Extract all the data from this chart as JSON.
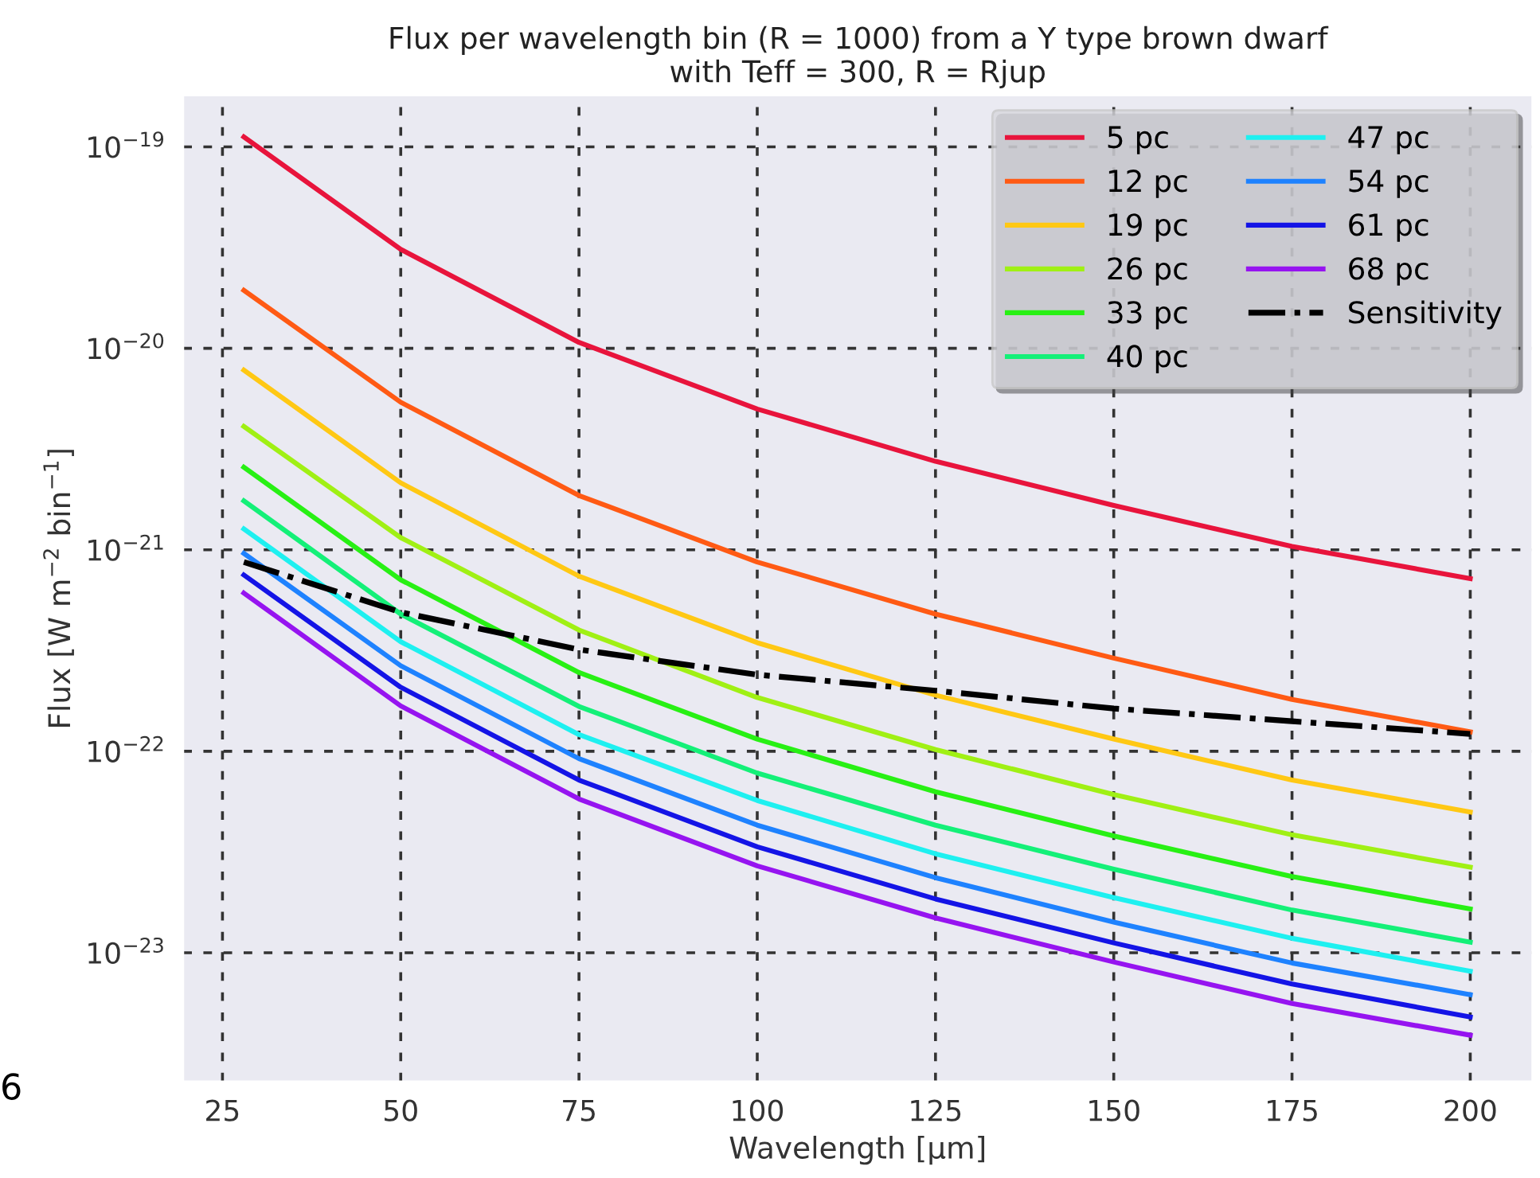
{
  "chart_data": {
    "type": "line",
    "title": "Flux per wavelength bin (R = 1000) from a Y type brown dwarf\nwith Teff = 300, R = Rjup",
    "xlabel": "Wavelength [μm]",
    "ylabel": "Flux [W m$^{−2}$ bin$^{−1}$]",
    "x": [
      28,
      50,
      75,
      100,
      125,
      150,
      175,
      200
    ],
    "series": [
      {
        "name": "5 pc",
        "color": "#e8143c",
        "values": [
          1.12e-19,
          3.1e-20,
          1.07e-20,
          5e-21,
          2.75e-21,
          1.66e-21,
          1.04e-21,
          7.2e-22
        ]
      },
      {
        "name": "12 pc",
        "color": "#ff5a14",
        "values": [
          1.94e-20,
          5.4e-21,
          1.86e-21,
          8.7e-22,
          4.8e-22,
          2.9e-22,
          1.81e-22,
          1.25e-22
        ]
      },
      {
        "name": "19 pc",
        "color": "#ffc814",
        "values": [
          7.8e-21,
          2.15e-21,
          7.4e-22,
          3.46e-22,
          1.9e-22,
          1.15e-22,
          7.2e-23,
          5e-23
        ]
      },
      {
        "name": "26 pc",
        "color": "#a0f014",
        "values": [
          4.1e-21,
          1.15e-21,
          4e-22,
          1.85e-22,
          1.02e-22,
          6.1e-23,
          3.85e-23,
          2.66e-23
        ]
      },
      {
        "name": "33 pc",
        "color": "#28f014",
        "values": [
          2.57e-21,
          7.1e-22,
          2.46e-22,
          1.15e-22,
          6.3e-23,
          3.8e-23,
          2.39e-23,
          1.65e-23
        ]
      },
      {
        "name": "40 pc",
        "color": "#14f078",
        "values": [
          1.75e-21,
          4.8e-22,
          1.67e-22,
          7.8e-23,
          4.3e-23,
          2.6e-23,
          1.63e-23,
          1.13e-23
        ]
      },
      {
        "name": "47 pc",
        "color": "#1ef0f0",
        "values": [
          1.27e-21,
          3.5e-22,
          1.21e-22,
          5.7e-23,
          3.1e-23,
          1.88e-23,
          1.18e-23,
          8.1e-24
        ]
      },
      {
        "name": "54 pc",
        "color": "#1e82ff",
        "values": [
          9.6e-22,
          2.66e-22,
          9.2e-23,
          4.3e-23,
          2.36e-23,
          1.42e-23,
          8.9e-24,
          6.2e-24
        ]
      },
      {
        "name": "61 pc",
        "color": "#1414e6",
        "values": [
          7.5e-22,
          2.08e-22,
          7.2e-23,
          3.36e-23,
          1.85e-23,
          1.12e-23,
          7e-24,
          4.8e-24
        ]
      },
      {
        "name": "68 pc",
        "color": "#9614f0",
        "values": [
          6.1e-22,
          1.68e-22,
          5.8e-23,
          2.7e-23,
          1.49e-23,
          9e-24,
          5.6e-24,
          3.9e-24
        ]
      },
      {
        "name": "Sensitivity",
        "color": "#000000",
        "line_style": "dashdot",
        "values": [
          8.7e-22,
          4.9e-22,
          3.2e-22,
          2.4e-22,
          2e-22,
          1.63e-22,
          1.41e-22,
          1.22e-22
        ]
      }
    ],
    "log": "y",
    "xlim": [
      19.5,
      208.7
    ],
    "ylim": [
      2.3e-24,
      1.8e-19
    ],
    "xticks": [
      25,
      50,
      75,
      100,
      125,
      150,
      175,
      200
    ],
    "yticks": [
      {
        "value": 1e-23,
        "label": "10$^{−23}$"
      },
      {
        "value": 1e-22,
        "label": "10$^{−22}$"
      },
      {
        "value": 1e-21,
        "label": "10$^{−21}$"
      },
      {
        "value": 1e-20,
        "label": "10$^{−20}$"
      },
      {
        "value": 1e-19,
        "label": "10$^{−19}$"
      }
    ],
    "grid": true,
    "legend": "top right",
    "marker": "none",
    "line_style": "solid",
    "annotations": [
      "6"
    ]
  }
}
